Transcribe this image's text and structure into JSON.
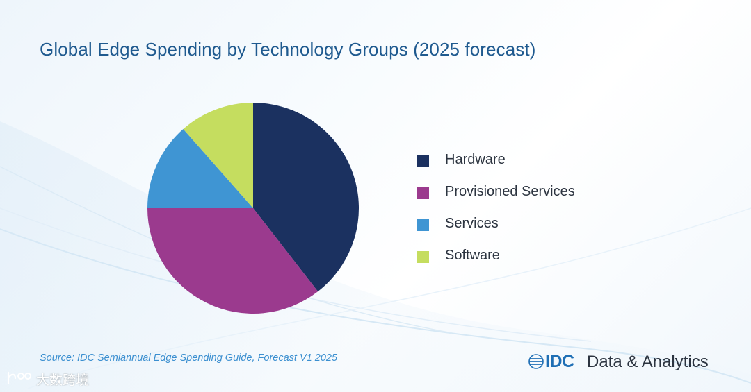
{
  "title": "Global Edge Spending by Technology Groups (2025 forecast)",
  "chart_data": {
    "type": "pie",
    "title": "Global Edge Spending by Technology Groups (2025 forecast)",
    "categories": [
      "Hardware",
      "Provisioned Services",
      "Services",
      "Software"
    ],
    "values": [
      39.5,
      35.5,
      13.5,
      11.5
    ],
    "unit": "percent of spending (estimated)",
    "colors": [
      "#1b3160",
      "#9b3a8e",
      "#3f95d3",
      "#c5dd5f"
    ],
    "start_angle_deg": 0,
    "direction": "clockwise",
    "legend_position": "right"
  },
  "source": "Source: IDC Semiannual Edge Spending Guide, Forecast V1 2025",
  "brand": {
    "name": "IDC",
    "tagline": "Data & Analytics",
    "color": "#1f6fb5"
  },
  "watermark": {
    "text": "大数跨境"
  }
}
